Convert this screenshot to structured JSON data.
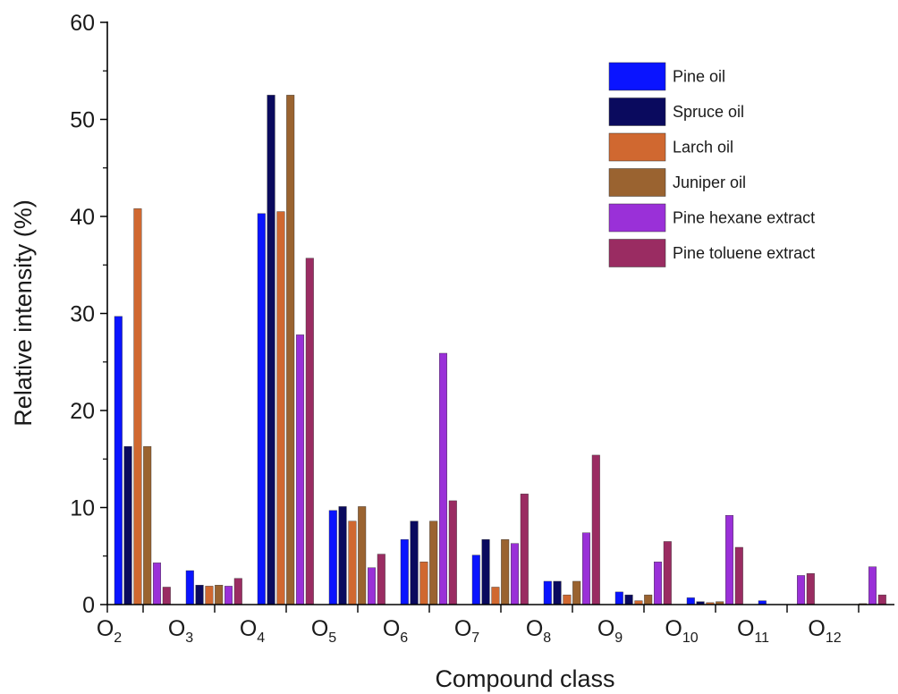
{
  "chart_data": {
    "type": "bar",
    "xlabel": "Compound class",
    "ylabel": "Relative intensity (%)",
    "ylim": [
      0,
      60
    ],
    "yticks": [
      0,
      10,
      20,
      30,
      40,
      50,
      60
    ],
    "legend_position": "top-right",
    "grid": false,
    "categories": [
      {
        "main": "O",
        "sub": "2"
      },
      {
        "main": "O",
        "sub": "3"
      },
      {
        "main": "O",
        "sub": "4"
      },
      {
        "main": "O",
        "sub": "5"
      },
      {
        "main": "O",
        "sub": "6"
      },
      {
        "main": "O",
        "sub": "7"
      },
      {
        "main": "O",
        "sub": "8"
      },
      {
        "main": "O",
        "sub": "9"
      },
      {
        "main": "O",
        "sub": "10"
      },
      {
        "main": "O",
        "sub": "11"
      },
      {
        "main": "O",
        "sub": "12"
      }
    ],
    "series": [
      {
        "name": "Pine oil",
        "color": "#0a14ff",
        "values": [
          29.7,
          3.5,
          40.3,
          9.7,
          6.7,
          5.1,
          2.4,
          1.3,
          0.7,
          0.4,
          0
        ]
      },
      {
        "name": "Spruce oil",
        "color": "#0a0a5e",
        "values": [
          16.3,
          2.0,
          52.5,
          10.1,
          8.6,
          6.7,
          2.4,
          1.0,
          0.3,
          0,
          0
        ]
      },
      {
        "name": "Larch oil",
        "color": "#d06830",
        "values": [
          40.8,
          1.9,
          40.5,
          8.6,
          4.4,
          1.8,
          1.0,
          0.4,
          0.2,
          0,
          0
        ]
      },
      {
        "name": "Juniper oil",
        "color": "#9a6330",
        "values": [
          16.3,
          2.0,
          52.5,
          10.1,
          8.6,
          6.7,
          2.4,
          1.0,
          0.3,
          0,
          0.1
        ]
      },
      {
        "name": "Pine hexane extract",
        "color": "#9a30d8",
        "values": [
          4.3,
          1.9,
          27.8,
          3.8,
          25.9,
          6.3,
          7.4,
          4.4,
          9.2,
          3.0,
          3.9
        ]
      },
      {
        "name": "Pine toluene extract",
        "color": "#9a2c62",
        "values": [
          1.8,
          2.7,
          35.7,
          5.2,
          10.7,
          11.4,
          15.4,
          6.5,
          5.9,
          3.2,
          1.0
        ]
      }
    ]
  }
}
